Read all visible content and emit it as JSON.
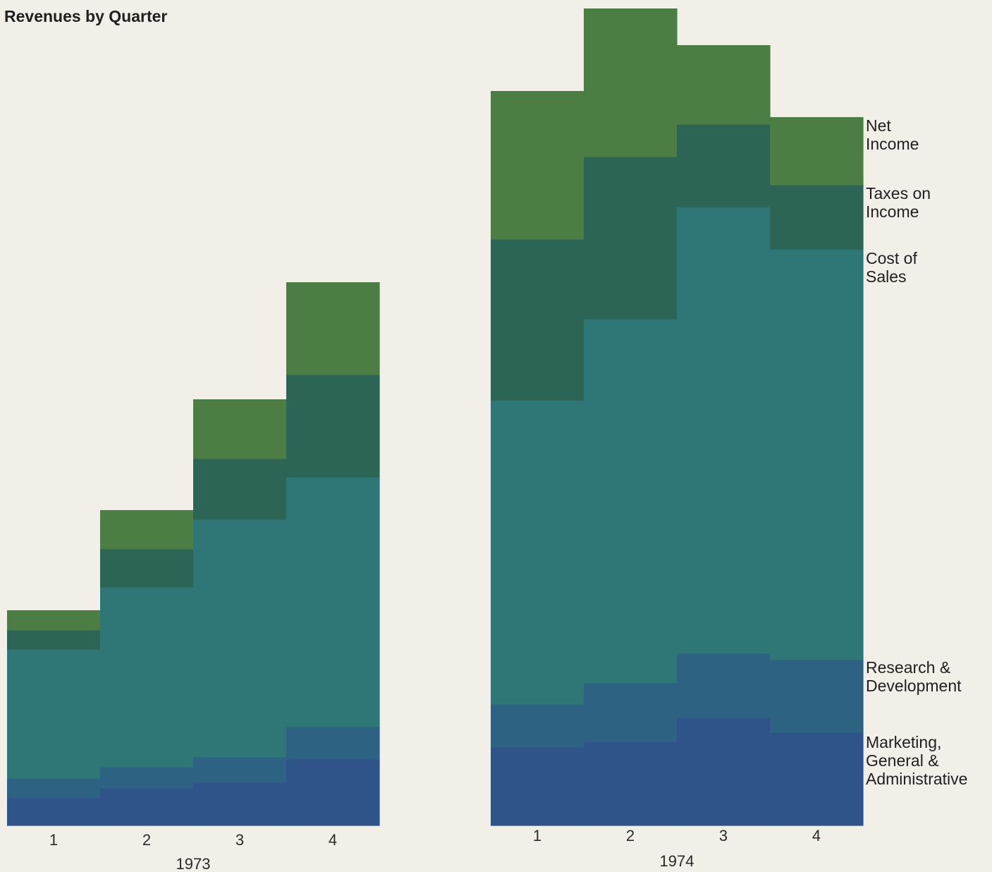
{
  "title": "Revenues by Quarter",
  "chart_data": {
    "type": "bar",
    "stacked": true,
    "title": "Revenues by Quarter",
    "categories": [
      "1",
      "2",
      "3",
      "4"
    ],
    "layers": [
      {
        "name": "Marketing, General & Administrative",
        "color": "#2e5489"
      },
      {
        "name": "Research & Development",
        "color": "#2e6282"
      },
      {
        "name": "Cost of Sales",
        "color": "#2f7676"
      },
      {
        "name": "Taxes on Income",
        "color": "#2c6456"
      },
      {
        "name": "Net Income",
        "color": "#4c7d44"
      }
    ],
    "legend": [
      [
        "Net",
        "Income"
      ],
      [
        "Taxes on",
        "Income"
      ],
      [
        "Cost of",
        "Sales"
      ],
      [
        "Research &",
        "Development"
      ],
      [
        "Marketing,",
        "General &",
        "Administrative"
      ]
    ],
    "legend_position": "right",
    "panels": [
      {
        "year": "1973",
        "series": [
          {
            "name": "Marketing, General & Administrative",
            "values": [
              39,
              53,
              61,
              94
            ]
          },
          {
            "name": "Research & Development",
            "values": [
              28,
              30,
              36,
              46
            ]
          },
          {
            "name": "Cost of Sales",
            "values": [
              183,
              255,
              337,
              354
            ]
          },
          {
            "name": "Taxes on Income",
            "values": [
              27,
              54,
              86,
              145
            ]
          },
          {
            "name": "Net Income",
            "values": [
              28,
              55,
              84,
              131
            ]
          }
        ]
      },
      {
        "year": "1974",
        "series": [
          {
            "name": "Marketing, General & Administrative",
            "values": [
              111,
              119,
              153,
              132
            ]
          },
          {
            "name": "Research & Development",
            "values": [
              61,
              83,
              91,
              103
            ]
          },
          {
            "name": "Cost of Sales",
            "values": [
              431,
              516,
              633,
              582
            ]
          },
          {
            "name": "Taxes on Income",
            "values": [
              228,
              230,
              117,
              91
            ]
          },
          {
            "name": "Net Income",
            "values": [
              210,
              210,
              112,
              96
            ]
          }
        ]
      }
    ]
  }
}
